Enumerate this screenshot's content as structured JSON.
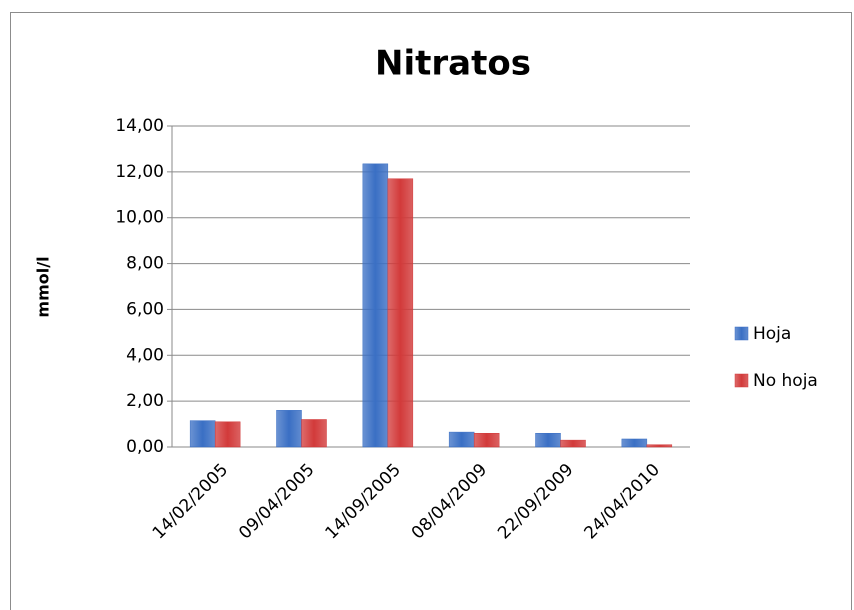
{
  "chart_data": {
    "type": "bar",
    "title": "Nitratos",
    "y_label": "mmol/l",
    "categories": [
      "14/02/2005",
      "09/04/2005",
      "14/09/2005",
      "08/04/2009",
      "22/09/2009",
      "24/04/2010"
    ],
    "series": [
      {
        "name": "Hoja",
        "color": "#3a6fc4",
        "values": [
          1.15,
          1.6,
          12.35,
          0.65,
          0.6,
          0.35
        ]
      },
      {
        "name": "No hoja",
        "color": "#d23a3a",
        "values": [
          1.1,
          1.2,
          11.7,
          0.6,
          0.3,
          0.1
        ]
      }
    ],
    "ylim": [
      0,
      14
    ],
    "yticks": [
      {
        "value": 0,
        "label": "0,00"
      },
      {
        "value": 2,
        "label": "2,00"
      },
      {
        "value": 4,
        "label": "4,00"
      },
      {
        "value": 6,
        "label": "6,00"
      },
      {
        "value": 8,
        "label": "8,00"
      },
      {
        "value": 10,
        "label": "10,00"
      },
      {
        "value": 12,
        "label": "12,00"
      },
      {
        "value": 14,
        "label": "14,00"
      }
    ],
    "grid": true,
    "legend": "right"
  }
}
